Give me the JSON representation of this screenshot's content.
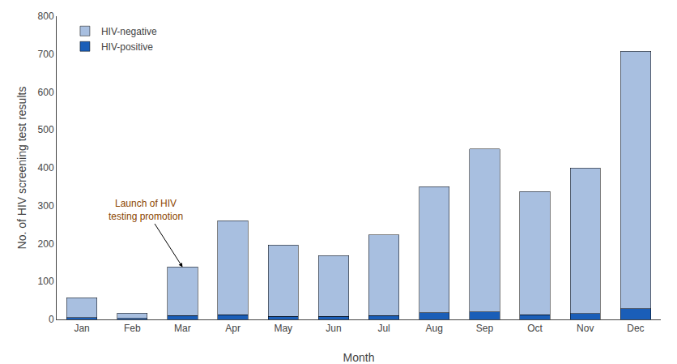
{
  "chart_data": {
    "type": "bar",
    "stacked": true,
    "categories": [
      "Jan",
      "Feb",
      "Mar",
      "Apr",
      "May",
      "Jun",
      "Jul",
      "Aug",
      "Sep",
      "Oct",
      "Nov",
      "Dec"
    ],
    "series": [
      {
        "name": "HIV-positive",
        "color": "#1a5eb8",
        "values": [
          5,
          3,
          10,
          12,
          8,
          8,
          10,
          18,
          20,
          12,
          15,
          28
        ]
      },
      {
        "name": "HIV-negative",
        "color": "#a8bfe0",
        "values": [
          52,
          14,
          128,
          248,
          188,
          160,
          213,
          332,
          430,
          325,
          385,
          680
        ]
      }
    ],
    "xlabel": "Month",
    "ylabel": "No. of HIV screening test results",
    "ylim": [
      0,
      800
    ],
    "yticks": [
      0,
      100,
      200,
      300,
      400,
      500,
      600,
      700,
      800
    ],
    "grid": false,
    "legend": "upper left",
    "annotations": [
      {
        "text": "Launch of HIV\ntesting promotion",
        "x": "Mar",
        "color": "#8b4500"
      }
    ]
  }
}
